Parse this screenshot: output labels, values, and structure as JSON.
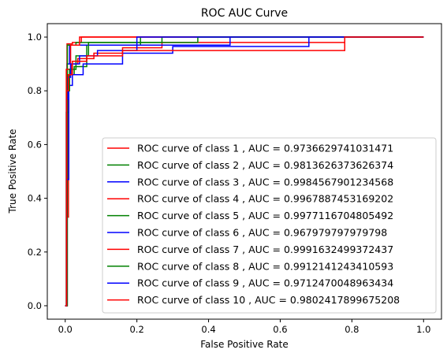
{
  "chart_data": {
    "type": "line",
    "title": "ROC AUC Curve",
    "xlabel": "False Positive Rate",
    "ylabel": "True Positive Rate",
    "xlim": [
      -0.05,
      1.05
    ],
    "ylim": [
      -0.05,
      1.05
    ],
    "xticks": [
      0.0,
      0.2,
      0.4,
      0.6,
      0.8,
      1.0
    ],
    "xtick_labels": [
      "0.0",
      "0.2",
      "0.4",
      "0.6",
      "0.8",
      "1.0"
    ],
    "yticks": [
      0.0,
      0.2,
      0.4,
      0.6,
      0.8,
      1.0
    ],
    "ytick_labels": [
      "0.0",
      "0.2",
      "0.4",
      "0.6",
      "0.8",
      "1.0"
    ],
    "grid": false,
    "legend_position": "lower-right",
    "series": [
      {
        "name": "ROC curve of class 1 , AUC = 0.9736629741031471",
        "color": "#ff0000",
        "x": [
          0,
          0.004,
          0.004,
          0.009,
          0.009,
          0.018,
          0.018,
          0.035,
          0.035,
          0.08,
          0.08,
          0.16,
          0.16,
          0.27,
          0.27,
          0.78,
          0.78,
          1.0
        ],
        "y": [
          0,
          0,
          0.33,
          0.33,
          0.86,
          0.86,
          0.9,
          0.9,
          0.92,
          0.92,
          0.94,
          0.94,
          0.96,
          0.96,
          0.98,
          0.98,
          1.0,
          1.0
        ]
      },
      {
        "name": "ROC curve of class 2 , AUC = 0.9813626373626374",
        "color": "#008000",
        "x": [
          0,
          0.003,
          0.003,
          0.01,
          0.01,
          0.025,
          0.025,
          0.06,
          0.06,
          0.21,
          0.21,
          1.0
        ],
        "y": [
          0,
          0,
          0.72,
          0.72,
          0.86,
          0.86,
          0.89,
          0.89,
          0.97,
          0.97,
          1.0,
          1.0
        ]
      },
      {
        "name": "ROC curve of class 3 , AUC = 0.9984567901234568",
        "color": "#0000ff",
        "x": [
          0,
          0.005,
          0.005,
          0.012,
          0.012,
          0.46,
          0.46,
          1.0
        ],
        "y": [
          0,
          0,
          0.9,
          0.9,
          0.97,
          0.97,
          1.0,
          1.0
        ]
      },
      {
        "name": "ROC curve of class 4 , AUC = 0.9967887453169202",
        "color": "#ff0000",
        "x": [
          0,
          0.005,
          0.005,
          0.02,
          0.02,
          0.045,
          0.045,
          1.0
        ],
        "y": [
          0,
          0,
          0.975,
          0.975,
          0.98,
          0.98,
          1.0,
          1.0
        ]
      },
      {
        "name": "ROC curve of class 5 , AUC = 0.9977116704805492",
        "color": "#008000",
        "x": [
          0,
          0.006,
          0.006,
          0.03,
          0.03,
          0.27,
          0.27,
          1.0
        ],
        "y": [
          0,
          0,
          0.97,
          0.97,
          0.98,
          0.98,
          1.0,
          1.0
        ]
      },
      {
        "name": "ROC curve of class 6 , AUC = 0.967979797979798",
        "color": "#0000ff",
        "x": [
          0,
          0.004,
          0.004,
          0.01,
          0.01,
          0.02,
          0.02,
          0.05,
          0.05,
          0.16,
          0.16,
          0.3,
          0.3,
          0.68,
          0.68,
          1.0
        ],
        "y": [
          0,
          0,
          0.47,
          0.47,
          0.82,
          0.82,
          0.86,
          0.86,
          0.9,
          0.9,
          0.94,
          0.94,
          0.965,
          0.965,
          1.0,
          1.0
        ]
      },
      {
        "name": "ROC curve of class 7 , AUC = 0.9991632499372437",
        "color": "#ff0000",
        "x": [
          0,
          0.003,
          0.003,
          0.015,
          0.015,
          0.04,
          0.04,
          1.0
        ],
        "y": [
          0,
          0,
          0.88,
          0.88,
          0.97,
          0.97,
          1.0,
          1.0
        ]
      },
      {
        "name": "ROC curve of class 8 , AUC = 0.9912141243410593",
        "color": "#008000",
        "x": [
          0,
          0.004,
          0.004,
          0.012,
          0.012,
          0.03,
          0.03,
          0.065,
          0.065,
          0.37,
          0.37,
          1.0
        ],
        "y": [
          0,
          0,
          0.8,
          0.8,
          0.88,
          0.88,
          0.93,
          0.93,
          0.98,
          0.98,
          1.0,
          1.0
        ]
      },
      {
        "name": "ROC curve of class 9 , AUC = 0.9712470048963434",
        "color": "#0000ff",
        "x": [
          0,
          0.004,
          0.004,
          0.008,
          0.008,
          0.015,
          0.015,
          0.04,
          0.04,
          0.09,
          0.09,
          0.2,
          0.2,
          1.0
        ],
        "y": [
          0,
          0,
          0.77,
          0.77,
          0.85,
          0.85,
          0.9,
          0.9,
          0.93,
          0.93,
          0.95,
          0.95,
          1.0,
          1.0
        ]
      },
      {
        "name": "ROC curve of class 10 , AUC = 0.9802417899675208",
        "color": "#ff0000",
        "x": [
          0,
          0.004,
          0.004,
          0.009,
          0.009,
          0.02,
          0.02,
          0.06,
          0.06,
          0.16,
          0.16,
          0.78,
          0.78,
          1.0
        ],
        "y": [
          0,
          0,
          0.8,
          0.8,
          0.86,
          0.86,
          0.91,
          0.91,
          0.93,
          0.93,
          0.95,
          0.95,
          1.0,
          1.0
        ]
      }
    ]
  }
}
